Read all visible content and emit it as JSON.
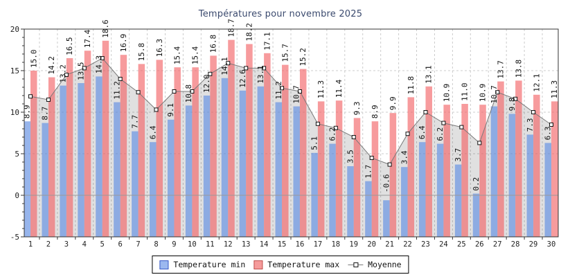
{
  "chart_data": {
    "type": "bar",
    "title": "Températures pour novembre 2025",
    "xlabel": "",
    "ylabel": "",
    "ylim": [
      -5,
      20
    ],
    "yticks": [
      20,
      15,
      10,
      5,
      0,
      -5
    ],
    "grid": true,
    "legend_position": "bottom",
    "categories": [
      1,
      2,
      3,
      4,
      5,
      6,
      7,
      8,
      9,
      10,
      11,
      12,
      13,
      14,
      15,
      16,
      17,
      18,
      19,
      20,
      21,
      22,
      23,
      24,
      25,
      26,
      27,
      28,
      29,
      30
    ],
    "series": [
      {
        "name": "Temperature min",
        "type": "bar",
        "fill": "rgba(97,142,226,0.66)",
        "legend_fill": "#9CB8EF",
        "legend_border": "#3A5BC7",
        "values": [
          8.9,
          8.7,
          13.2,
          13.5,
          14.3,
          11.2,
          7.7,
          6.4,
          9.1,
          10.8,
          12.0,
          14.1,
          12.6,
          13.1,
          11.2,
          10.7,
          5.1,
          6.2,
          3.5,
          1.7,
          -0.6,
          3.4,
          6.4,
          6.2,
          3.7,
          0.2,
          10.7,
          9.8,
          7.3,
          6.3
        ]
      },
      {
        "name": "Temperature max",
        "type": "bar",
        "fill": "rgba(243,98,102,0.64)",
        "legend_fill": "#F59B9B",
        "legend_border": "#C0504D",
        "values": [
          15.0,
          14.2,
          16.5,
          17.4,
          18.6,
          16.9,
          15.8,
          16.3,
          15.4,
          15.4,
          16.8,
          18.7,
          18.2,
          17.1,
          15.7,
          15.2,
          11.3,
          11.4,
          9.3,
          8.9,
          9.9,
          11.8,
          13.1,
          10.9,
          11.0,
          10.9,
          13.7,
          13.8,
          12.1,
          11.3
        ]
      },
      {
        "name": "Moyenne",
        "type": "line",
        "line_color": "#7a7a7a",
        "marker": "square",
        "area_fill": "rgba(0,0,0,0.12)",
        "values": [
          11.9,
          11.5,
          14.5,
          15.3,
          16.5,
          14.0,
          12.4,
          10.3,
          12.5,
          12.5,
          14.6,
          15.9,
          15.3,
          15.3,
          12.9,
          12.5,
          8.6,
          8.1,
          7.0,
          4.5,
          3.7,
          7.4,
          10.0,
          8.7,
          8.2,
          6.3,
          12.4,
          11.6,
          10.0,
          8.5
        ]
      }
    ]
  }
}
